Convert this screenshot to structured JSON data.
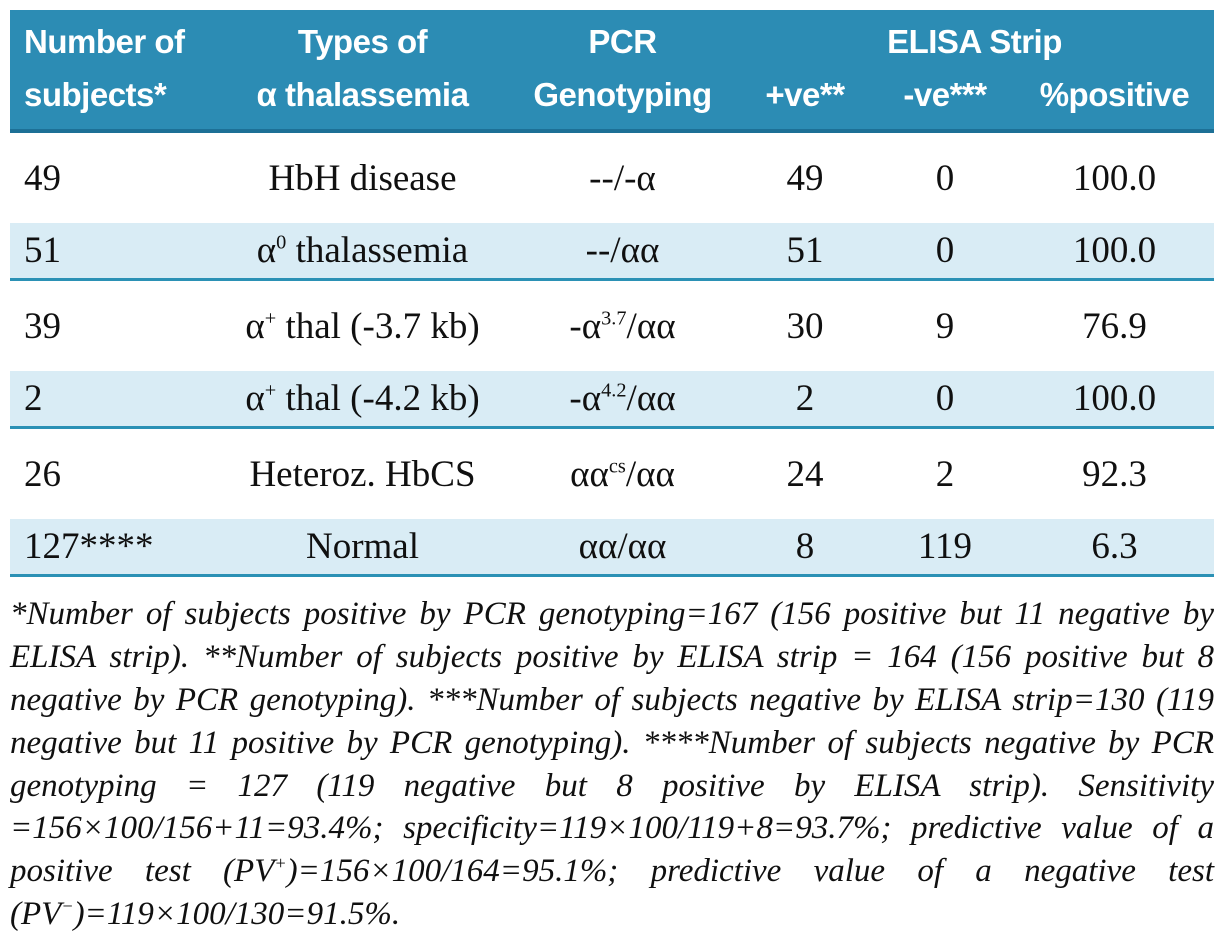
{
  "colors": {
    "header_bg": "#2c8cb4",
    "header_rule": "#1d7096",
    "stripe_bg": "#d9ecf5",
    "rule": "#2b91b5"
  },
  "table": {
    "header": {
      "col1_line1": "Number of",
      "col1_line2": "subjects*",
      "col2_line1": "Types of",
      "col2_line2": "α thalassemia",
      "col3_line1": "PCR",
      "col3_line2": "Genotyping",
      "elisa_group": "ELISA Strip",
      "col4": "+ve**",
      "col5": "-ve***",
      "col6": "%positive"
    },
    "rows": [
      {
        "subjects": "49",
        "type": [
          {
            "text": "HbH disease"
          }
        ],
        "genotype": [
          {
            "text": "--/-α"
          }
        ],
        "pos": "49",
        "neg": "0",
        "pct": "100.0"
      },
      {
        "subjects": "51",
        "type": [
          {
            "text": "α"
          },
          {
            "sup": "0"
          },
          {
            "text": " thalassemia"
          }
        ],
        "genotype": [
          {
            "text": "--/αα"
          }
        ],
        "pos": "51",
        "neg": "0",
        "pct": "100.0"
      },
      {
        "subjects": "39",
        "type": [
          {
            "text": "α"
          },
          {
            "sup": "+"
          },
          {
            "text": " thal (-3.7 kb)"
          }
        ],
        "genotype": [
          {
            "text": "-α"
          },
          {
            "sup": "3.7"
          },
          {
            "text": "/αα"
          }
        ],
        "pos": "30",
        "neg": "9",
        "pct": "76.9"
      },
      {
        "subjects": "2",
        "type": [
          {
            "text": "α"
          },
          {
            "sup": "+"
          },
          {
            "text": " thal (-4.2 kb)"
          }
        ],
        "genotype": [
          {
            "text": "-α"
          },
          {
            "sup": "4.2"
          },
          {
            "text": "/αα"
          }
        ],
        "pos": "2",
        "neg": "0",
        "pct": "100.0"
      },
      {
        "subjects": "26",
        "type": [
          {
            "text": "Heteroz. HbCS"
          }
        ],
        "genotype": [
          {
            "text": "αα"
          },
          {
            "sup": "cs"
          },
          {
            "text": "/αα"
          }
        ],
        "pos": "24",
        "neg": "2",
        "pct": "92.3"
      },
      {
        "subjects": "127****",
        "type": [
          {
            "text": "Normal"
          }
        ],
        "genotype": [
          {
            "text": "αα/αα"
          }
        ],
        "pos": "8",
        "neg": "119",
        "pct": "6.3"
      }
    ]
  },
  "footnote": {
    "segments": [
      {
        "text": "*Number of subjects positive by PCR genotyping=167 (156 positive but 11 negative by ELISA strip). **Number of subjects positive by ELISA strip = 164 (156 positive but 8 negative by PCR genotyping). ***Number of subjects negative by ELISA strip=130 (119 negative but 11 positive by PCR genotyping). ****Number of subjects negative by PCR genotyping = 127 (119 negative but 8 positive by ELISA strip). Sensitivity =156×100/156+11=93.4%; specificity=119×100/119+8=93.7%; predictive value of a positive test (PV"
      },
      {
        "sup": "+"
      },
      {
        "text": ")=156×100/164=95.1%; predictive value of a negative test (PV"
      },
      {
        "sup": "−"
      },
      {
        "text": ")=119×100/130=91.5%."
      }
    ]
  }
}
